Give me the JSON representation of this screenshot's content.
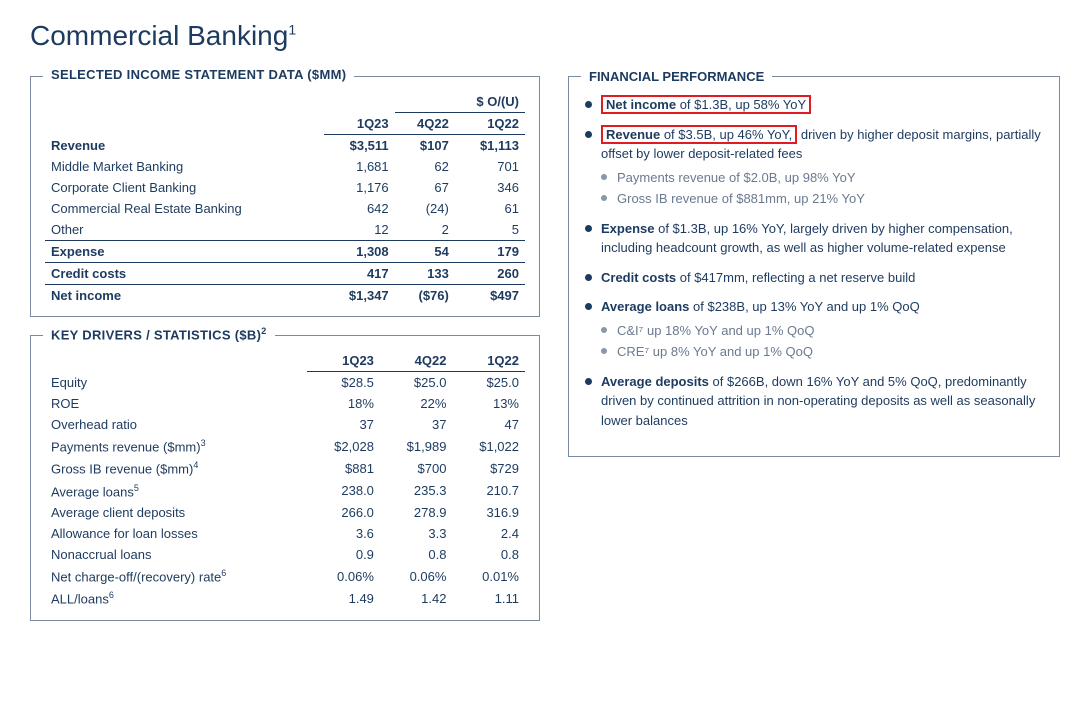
{
  "page": {
    "title": "Commercial Banking",
    "title_sup": "1"
  },
  "colors": {
    "text": "#1d3a5f",
    "border": "#7a8aa0",
    "highlight_border": "#e11b22",
    "sub_bullet": "#8a97a8",
    "background": "#ffffff"
  },
  "income_panel": {
    "title": "SELECTED INCOME STATEMENT DATA ($MM)",
    "ou_header": "$ O/(U)",
    "col_headers": [
      "1Q23",
      "4Q22",
      "1Q22"
    ],
    "rows": [
      {
        "label": "Revenue",
        "vals": [
          "$3,511",
          "$107",
          "$1,113"
        ],
        "bold": true,
        "line_above": false,
        "indent": false
      },
      {
        "label": "Middle Market Banking",
        "vals": [
          "1,681",
          "62",
          "701"
        ],
        "bold": false,
        "line_above": false,
        "indent": true
      },
      {
        "label": "Corporate Client Banking",
        "vals": [
          "1,176",
          "67",
          "346"
        ],
        "bold": false,
        "line_above": false,
        "indent": true
      },
      {
        "label": "Commercial Real Estate Banking",
        "vals": [
          "642",
          "(24)",
          "61"
        ],
        "bold": false,
        "line_above": false,
        "indent": true
      },
      {
        "label": "Other",
        "vals": [
          "12",
          "2",
          "5"
        ],
        "bold": false,
        "line_above": false,
        "indent": true
      },
      {
        "label": "Expense",
        "vals": [
          "1,308",
          "54",
          "179"
        ],
        "bold": true,
        "line_above": true,
        "indent": false
      },
      {
        "label": "Credit costs",
        "vals": [
          "417",
          "133",
          "260"
        ],
        "bold": true,
        "line_above": true,
        "indent": false
      },
      {
        "label": "Net income",
        "vals": [
          "$1,347",
          "($76)",
          "$497"
        ],
        "bold": true,
        "line_above": true,
        "indent": false
      }
    ]
  },
  "drivers_panel": {
    "title": "KEY DRIVERS / STATISTICS ($B)",
    "title_sup": "2",
    "col_headers": [
      "1Q23",
      "4Q22",
      "1Q22"
    ],
    "rows": [
      {
        "label": "Equity",
        "sup": "",
        "vals": [
          "$28.5",
          "$25.0",
          "$25.0"
        ]
      },
      {
        "label": "ROE",
        "sup": "",
        "vals": [
          "18%",
          "22%",
          "13%"
        ]
      },
      {
        "label": "Overhead ratio",
        "sup": "",
        "vals": [
          "37",
          "37",
          "47"
        ]
      },
      {
        "label": "Payments revenue ($mm)",
        "sup": "3",
        "vals": [
          "$2,028",
          "$1,989",
          "$1,022"
        ]
      },
      {
        "label": "Gross IB revenue ($mm)",
        "sup": "4",
        "vals": [
          "$881",
          "$700",
          "$729"
        ]
      },
      {
        "label": "Average loans",
        "sup": "5",
        "vals": [
          "238.0",
          "235.3",
          "210.7"
        ]
      },
      {
        "label": "Average client deposits",
        "sup": "",
        "vals": [
          "266.0",
          "278.9",
          "316.9"
        ]
      },
      {
        "label": "Allowance for loan losses",
        "sup": "",
        "vals": [
          "3.6",
          "3.3",
          "2.4"
        ]
      },
      {
        "label": "Nonaccrual loans",
        "sup": "",
        "vals": [
          "0.9",
          "0.8",
          "0.8"
        ]
      },
      {
        "label": "Net charge-off/(recovery) rate",
        "sup": "6",
        "vals": [
          "0.06%",
          "0.06%",
          "0.01%"
        ]
      },
      {
        "label": "ALL/loans",
        "sup": "6",
        "vals": [
          "1.49",
          "1.42",
          "1.11"
        ]
      }
    ]
  },
  "performance_panel": {
    "title": "FINANCIAL PERFORMANCE",
    "bullets": [
      {
        "highlight_full": true,
        "lead_bold": "Net income",
        "lead_rest_hl": " of $1.3B, up 58% YoY",
        "rest": "",
        "subs": []
      },
      {
        "highlight_lead": true,
        "lead_bold": "Revenue",
        "lead_rest_hl": " of $3.5B, up 46% YoY,",
        "rest": " driven by higher deposit margins, partially offset by lower deposit-related fees",
        "subs": [
          "Payments revenue of $2.0B, up 98% YoY",
          "Gross IB revenue of $881mm, up 21% YoY"
        ]
      },
      {
        "lead_bold": "Expense",
        "rest": " of $1.3B, up 16% YoY, largely driven by higher compensation, including headcount growth, as well as higher volume-related expense",
        "subs": []
      },
      {
        "lead_bold": "Credit costs",
        "rest": " of $417mm, reflecting a net reserve build",
        "subs": []
      },
      {
        "lead_bold": "Average loans",
        "rest": " of $238B, up 13% YoY and up 1% QoQ",
        "subs": [
          "C&I⁷ up 18% YoY and up 1% QoQ",
          "CRE⁷ up 8% YoY and up 1% QoQ"
        ]
      },
      {
        "lead_bold": "Average deposits",
        "rest": " of $266B, down 16% YoY and 5% QoQ, predominantly driven by continued attrition in non-operating deposits as well as seasonally lower balances",
        "subs": []
      }
    ]
  }
}
